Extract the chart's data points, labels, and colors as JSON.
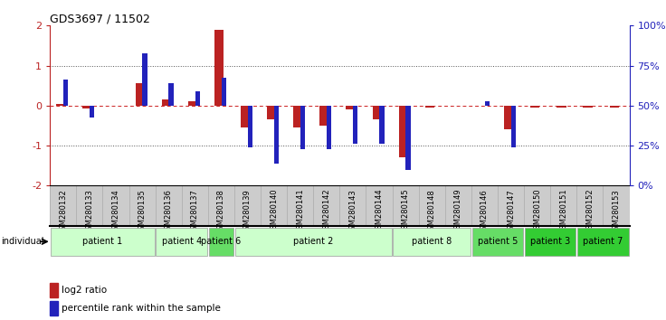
{
  "title": "GDS3697 / 11502",
  "samples": [
    "GSM280132",
    "GSM280133",
    "GSM280134",
    "GSM280135",
    "GSM280136",
    "GSM280137",
    "GSM280138",
    "GSM280139",
    "GSM280140",
    "GSM280141",
    "GSM280142",
    "GSM280143",
    "GSM280144",
    "GSM280145",
    "GSM280148",
    "GSM280149",
    "GSM280146",
    "GSM280147",
    "GSM280150",
    "GSM280151",
    "GSM280152",
    "GSM280153"
  ],
  "log2_ratio": [
    0.05,
    -0.07,
    0.0,
    0.55,
    0.15,
    0.12,
    1.9,
    -0.55,
    -0.35,
    -0.55,
    -0.5,
    -0.1,
    -0.35,
    -1.3,
    -0.05,
    0.0,
    0.0,
    -0.6,
    -0.05,
    -0.05,
    -0.05,
    -0.05
  ],
  "percentile_rank": [
    0.65,
    -0.3,
    0.0,
    1.3,
    0.55,
    0.35,
    0.7,
    -1.05,
    -1.45,
    -1.1,
    -1.1,
    -0.95,
    -0.95,
    -1.6,
    0.0,
    0.0,
    0.1,
    -1.05,
    0.0,
    0.0,
    0.0,
    0.0
  ],
  "log2_color": "#bb2222",
  "percentile_color": "#2222bb",
  "ylim": [
    -2,
    2
  ],
  "yticks_left": [
    -2,
    -1,
    0,
    1,
    2
  ],
  "yticks_right": [
    0,
    25,
    50,
    75,
    100
  ],
  "hline_color": "#cc2222",
  "dotted_color": "#555555",
  "patients": [
    {
      "label": "patient 1",
      "start": 0,
      "end": 4,
      "color": "#ccffcc"
    },
    {
      "label": "patient 4",
      "start": 4,
      "end": 6,
      "color": "#ccffcc"
    },
    {
      "label": "patient 6",
      "start": 6,
      "end": 7,
      "color": "#66dd66"
    },
    {
      "label": "patient 2",
      "start": 7,
      "end": 13,
      "color": "#ccffcc"
    },
    {
      "label": "patient 8",
      "start": 13,
      "end": 16,
      "color": "#ccffcc"
    },
    {
      "label": "patient 5",
      "start": 16,
      "end": 18,
      "color": "#66dd66"
    },
    {
      "label": "patient 3",
      "start": 18,
      "end": 20,
      "color": "#33cc33"
    },
    {
      "label": "patient 7",
      "start": 20,
      "end": 22,
      "color": "#33cc33"
    }
  ],
  "log2_bar_width": 0.35,
  "pct_bar_width": 0.18,
  "individual_label": "individual",
  "legend_log2": "log2 ratio",
  "legend_pct": "percentile rank within the sample",
  "background_color": "#ffffff",
  "xlabel_bg": "#cccccc"
}
